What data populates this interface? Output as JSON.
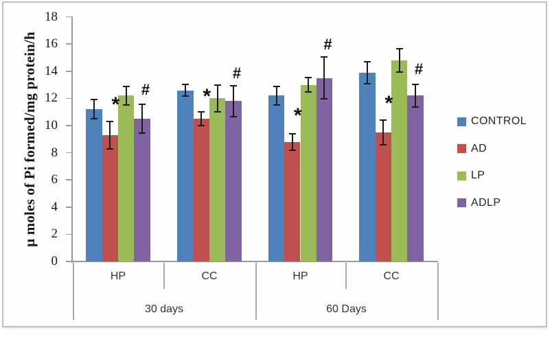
{
  "chart_data": {
    "type": "bar",
    "title": "",
    "ylabel": "μ moles of Pi formed/mg protein/h",
    "xlabel": "",
    "ylim": [
      0,
      18
    ],
    "yticks": [
      0,
      2,
      4,
      6,
      8,
      10,
      12,
      14,
      16,
      18
    ],
    "grid": false,
    "legend_position": "right",
    "categories": [
      "HP",
      "CC",
      "HP",
      "CC"
    ],
    "category_groups": [
      {
        "label": "30 days",
        "span": [
          0,
          1
        ]
      },
      {
        "label": "60 Days",
        "span": [
          2,
          3
        ]
      }
    ],
    "series": [
      {
        "name": "CONTROL",
        "color": "#4F81BD",
        "values": [
          11.2,
          12.6,
          12.2,
          13.9
        ],
        "errors": [
          0.7,
          0.45,
          0.7,
          0.8
        ]
      },
      {
        "name": "AD",
        "color": "#C0504D",
        "values": [
          9.3,
          10.5,
          8.8,
          9.5
        ],
        "errors": [
          1.0,
          0.5,
          0.6,
          0.9
        ]
      },
      {
        "name": "LP",
        "color": "#9BBB59",
        "values": [
          12.2,
          12.0,
          13.0,
          14.8
        ],
        "errors": [
          0.7,
          1.0,
          0.55,
          0.85
        ]
      },
      {
        "name": "ADLP",
        "color": "#8064A2",
        "values": [
          10.5,
          11.8,
          13.5,
          12.2
        ],
        "errors": [
          1.05,
          1.15,
          1.55,
          0.85
        ]
      }
    ],
    "annotations": [
      {
        "symbol": "*",
        "series": "AD",
        "category_index": 0,
        "y": 11.5
      },
      {
        "symbol": "*",
        "series": "AD",
        "category_index": 1,
        "y": 12.1
      },
      {
        "symbol": "*",
        "series": "AD",
        "category_index": 2,
        "y": 10.7
      },
      {
        "symbol": "*",
        "series": "AD",
        "category_index": 3,
        "y": 11.6
      },
      {
        "symbol": "#",
        "series": "ADLP",
        "category_index": 0,
        "y": 12.7
      },
      {
        "symbol": "#",
        "series": "ADLP",
        "category_index": 1,
        "y": 13.9
      },
      {
        "symbol": "#",
        "series": "ADLP",
        "category_index": 2,
        "y": 16.0
      },
      {
        "symbol": "#",
        "series": "ADLP",
        "category_index": 3,
        "y": 14.2
      }
    ]
  },
  "legend": {
    "items": [
      {
        "label": "CONTROL",
        "color": "#4F81BD"
      },
      {
        "label": "AD",
        "color": "#C0504D"
      },
      {
        "label": "LP",
        "color": "#9BBB59"
      },
      {
        "label": "ADLP",
        "color": "#8064A2"
      }
    ]
  }
}
